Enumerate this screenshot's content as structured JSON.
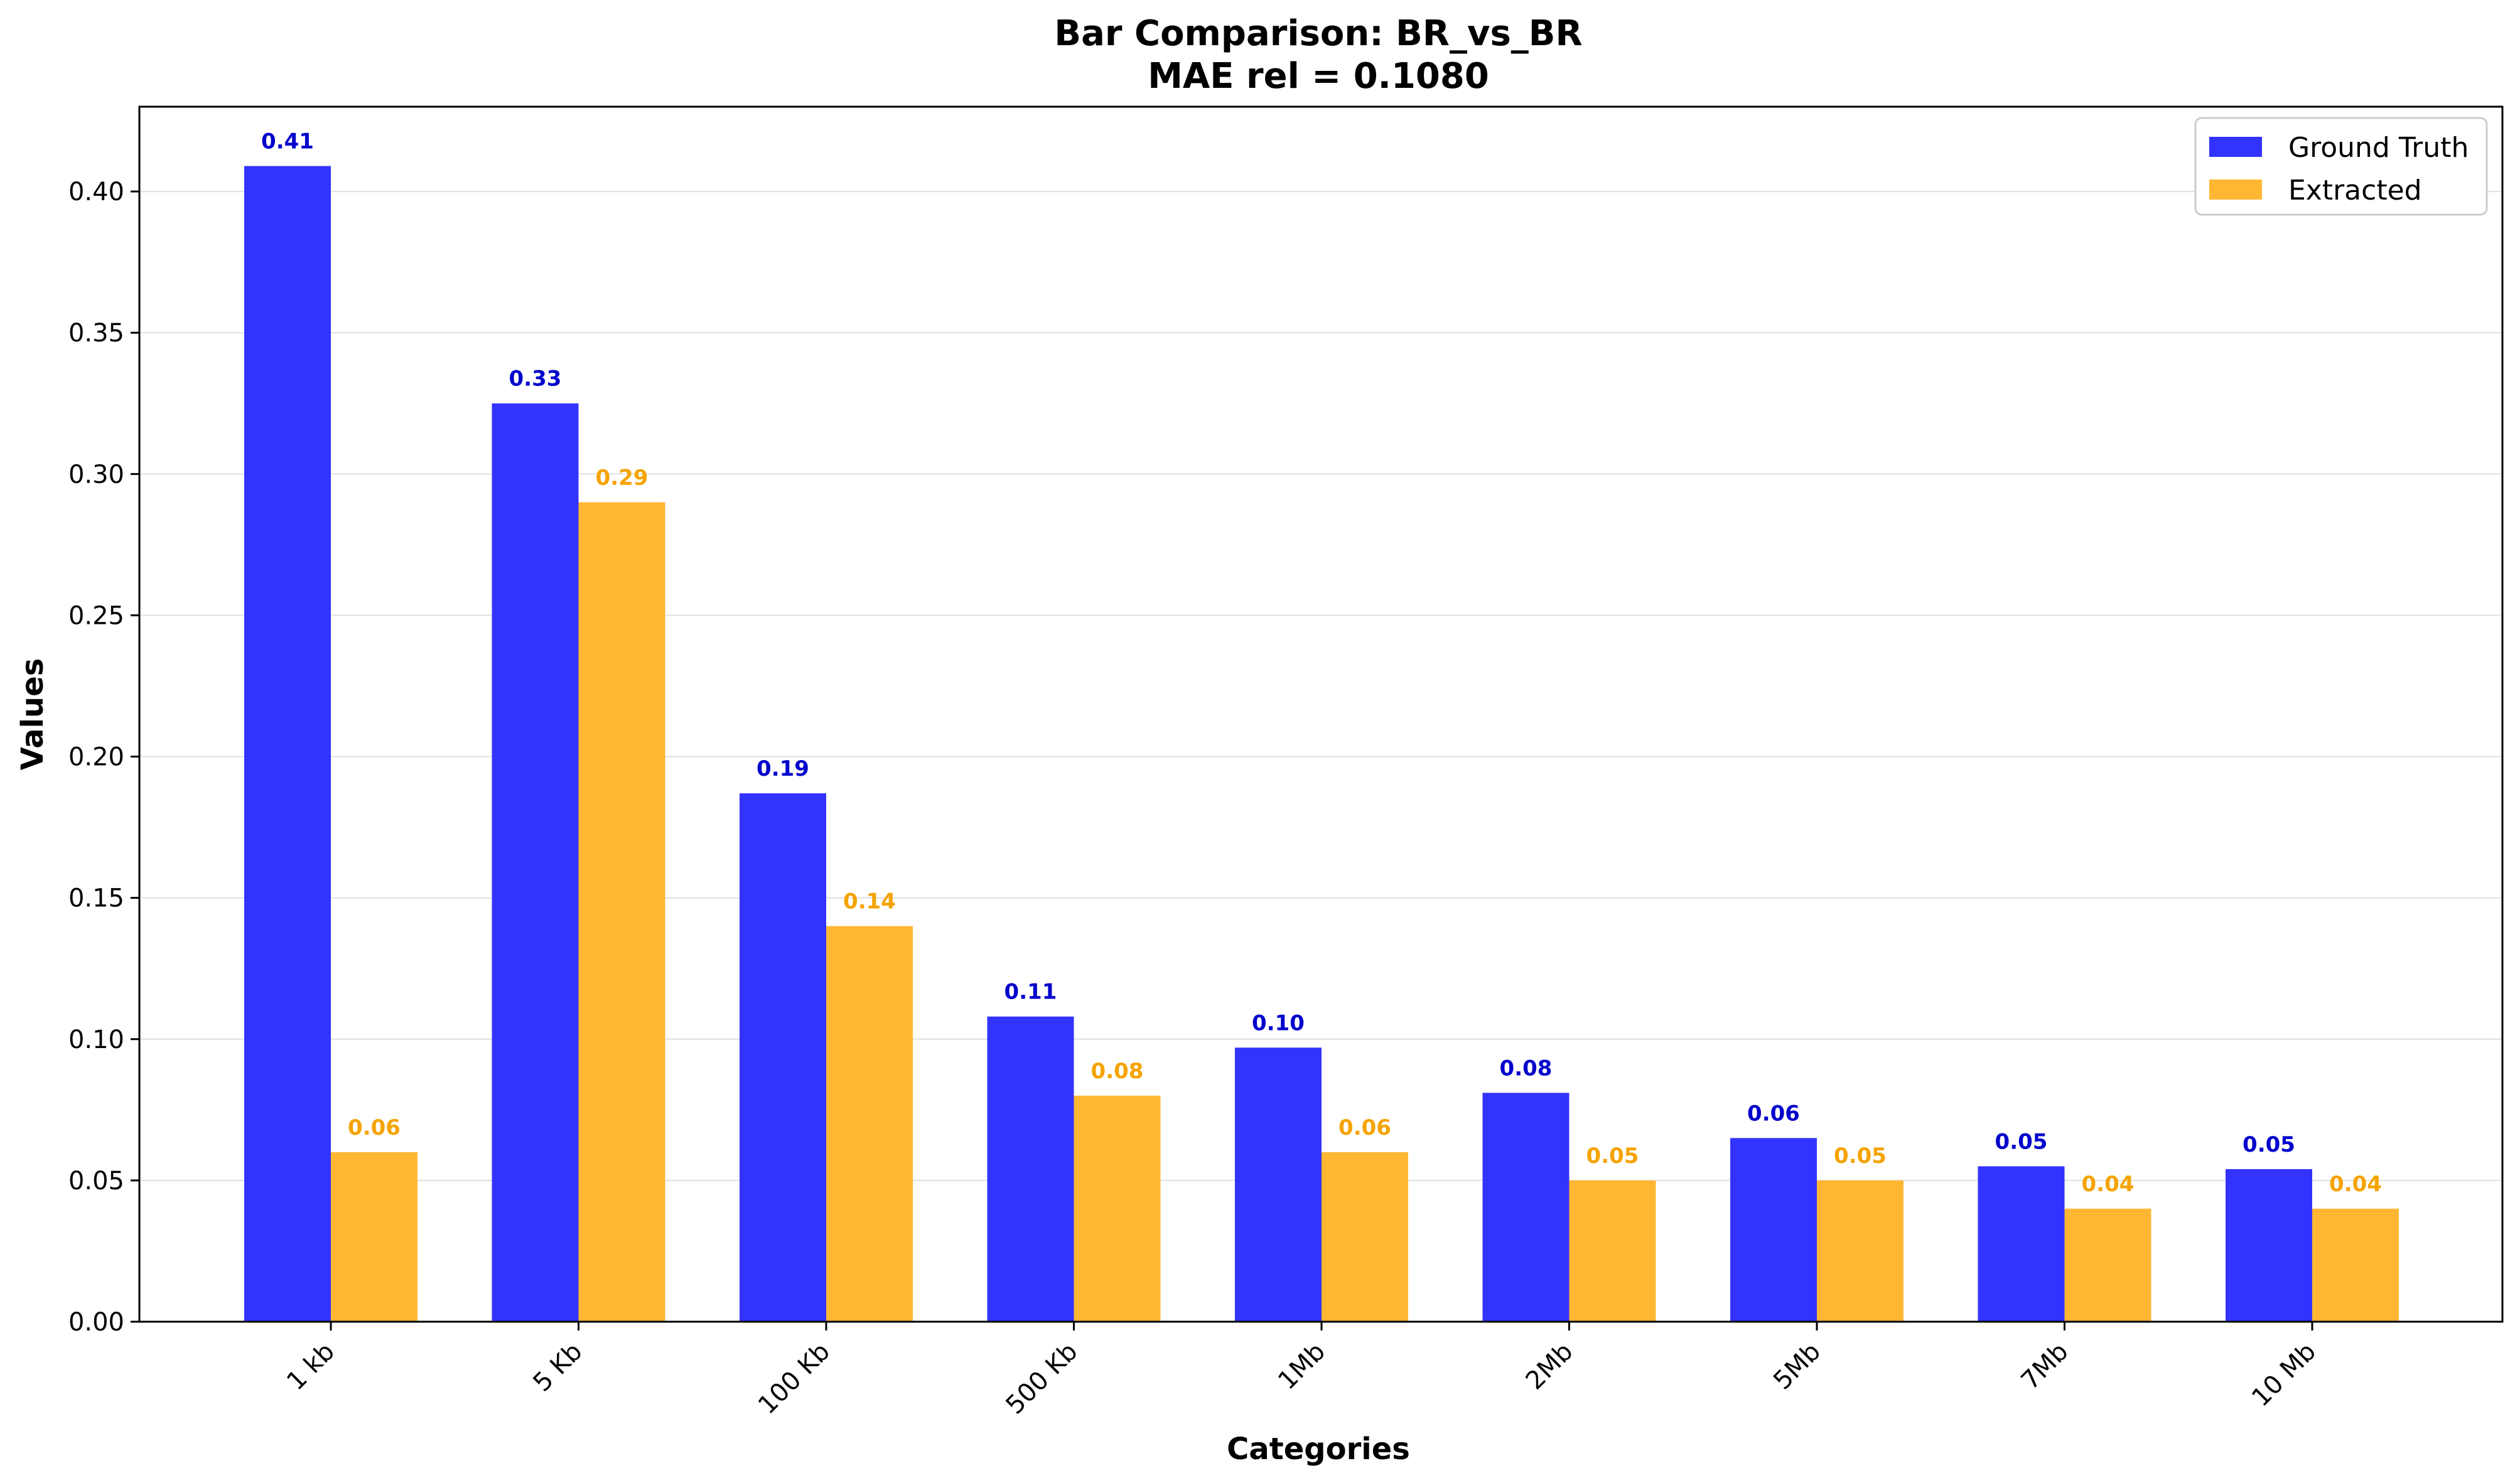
{
  "chart_data": {
    "type": "bar",
    "title": "Bar Comparison: BR_vs_BR",
    "subtitle": "MAE rel = 0.1080",
    "xlabel": "Categories",
    "ylabel": "Values",
    "categories": [
      "1 kb",
      "5 Kb",
      "100 Kb",
      "500 Kb",
      "1Mb",
      "2Mb",
      "5Mb",
      "7Mb",
      "10 Mb"
    ],
    "series": [
      {
        "name": "Ground Truth",
        "color": "#3333ff",
        "label_color": "#0000cc",
        "values": [
          0.409,
          0.325,
          0.187,
          0.108,
          0.097,
          0.081,
          0.065,
          0.055,
          0.054
        ],
        "labels": [
          "0.41",
          "0.33",
          "0.19",
          "0.11",
          "0.10",
          "0.08",
          "0.06",
          "0.05",
          "0.05"
        ]
      },
      {
        "name": "Extracted",
        "color": "#ffb733",
        "label_color": "#f5a300",
        "values": [
          0.06,
          0.29,
          0.14,
          0.08,
          0.06,
          0.05,
          0.05,
          0.04,
          0.04
        ],
        "labels": [
          "0.06",
          "0.29",
          "0.14",
          "0.08",
          "0.06",
          "0.05",
          "0.05",
          "0.04",
          "0.04"
        ]
      }
    ],
    "ylim": [
      0,
      0.43
    ],
    "yticks": [
      "0.00",
      "0.05",
      "0.10",
      "0.15",
      "0.20",
      "0.25",
      "0.30",
      "0.35",
      "0.40"
    ],
    "grid": "horizontal",
    "legend_position": "top-right"
  }
}
